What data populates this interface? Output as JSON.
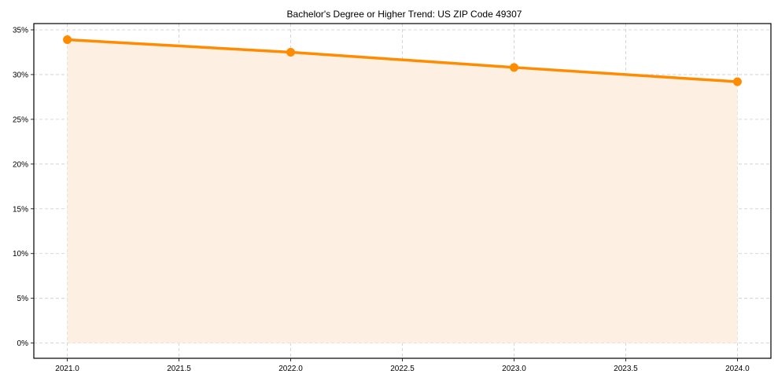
{
  "chart_data": {
    "type": "line",
    "title": "Bachelor's Degree or Higher Trend: US ZIP Code 49307",
    "xlabel": "",
    "ylabel": "",
    "x": [
      2021,
      2022,
      2023,
      2024
    ],
    "series": [
      {
        "name": "Bachelor's Degree or Higher",
        "values": [
          33.9,
          32.5,
          30.8,
          29.2
        ],
        "color": "#ff8c00",
        "fill": "#fdf0e2"
      }
    ],
    "xlim": [
      2020.85,
      2024.15
    ],
    "ylim": [
      -1.7,
      35.7
    ],
    "x_ticks": [
      "2021.0",
      "2021.5",
      "2022.0",
      "2022.5",
      "2023.0",
      "2023.5",
      "2024.0"
    ],
    "x_tick_values": [
      2021.0,
      2021.5,
      2022.0,
      2022.5,
      2023.0,
      2023.5,
      2024.0
    ],
    "y_ticks": [
      "0%",
      "5%",
      "10%",
      "15%",
      "20%",
      "25%",
      "30%",
      "35%"
    ],
    "y_tick_values": [
      0,
      5,
      10,
      15,
      20,
      25,
      30,
      35
    ],
    "grid": true,
    "legend": false
  }
}
